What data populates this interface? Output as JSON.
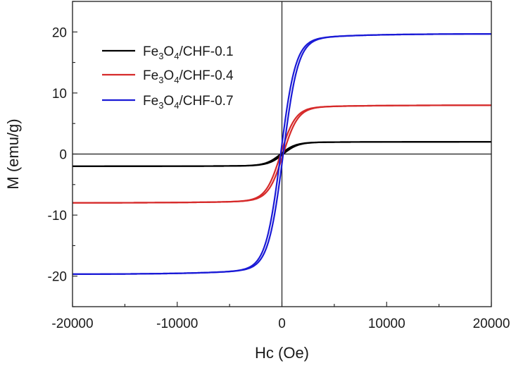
{
  "chart_data": {
    "type": "line",
    "title": "",
    "xlabel": "Hc (Oe)",
    "ylabel": "M (emu/g)",
    "xlim": [
      -20000,
      20000
    ],
    "ylim": [
      -25,
      25
    ],
    "xticks": [
      -20000,
      -10000,
      0,
      10000,
      20000
    ],
    "yticks": [
      -20,
      -10,
      0,
      10,
      20
    ],
    "xtick_labels": [
      "-20000",
      "-10000",
      "0",
      "10000",
      "20000"
    ],
    "ytick_labels": [
      "-20",
      "-10",
      "0",
      "10",
      "20"
    ],
    "grid": false,
    "zero_lines": true,
    "legend_position": "top-left",
    "series": [
      {
        "name": "Fe3O4/CHF-0.1",
        "legend": {
          "a": "Fe",
          "s1": "3",
          "b": "O",
          "s2": "4",
          "c": "/CHF-0.1"
        },
        "color": "#000000",
        "ms": 2.0,
        "h0": 700
      },
      {
        "name": "Fe3O4/CHF-0.4",
        "legend": {
          "a": "Fe",
          "s1": "3",
          "b": "O",
          "s2": "4",
          "c": "/CHF-0.4"
        },
        "color": "#d62a2a",
        "ms": 8.0,
        "h0": 700
      },
      {
        "name": "Fe3O4/CHF-0.7",
        "legend": {
          "a": "Fe",
          "s1": "3",
          "b": "O",
          "s2": "4",
          "c": "/CHF-0.7"
        },
        "color": "#1a1ad6",
        "ms": 19.7,
        "h0": 700
      }
    ]
  }
}
